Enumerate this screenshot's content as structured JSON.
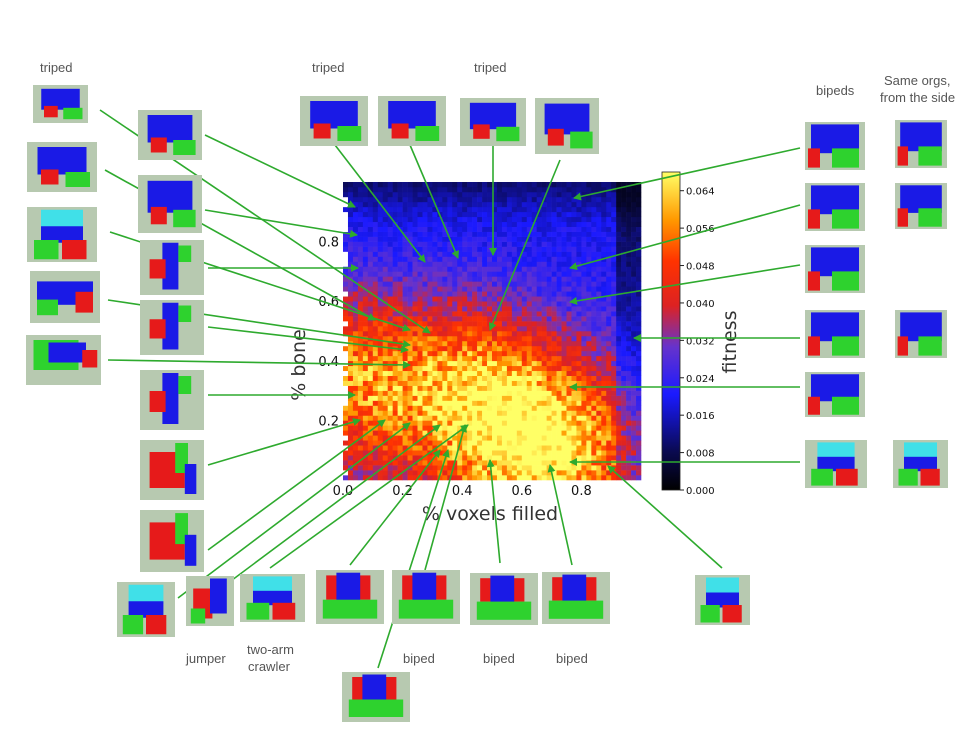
{
  "chart_data": {
    "type": "heatmap",
    "x_axis": {
      "label": "% voxels filled",
      "range": [
        0.0,
        1.0
      ],
      "ticks": [
        "0.0",
        "0.2",
        "0.4",
        "0.6",
        "0.8"
      ]
    },
    "y_axis": {
      "label": "% bone",
      "range": [
        0.0,
        1.0
      ],
      "ticks": [
        "0.2",
        "0.4",
        "0.6",
        "0.8"
      ]
    },
    "colorbar": {
      "label": "fitness",
      "range": [
        0.0,
        0.068
      ],
      "ticks": [
        "0.000",
        "0.008",
        "0.016",
        "0.024",
        "0.032",
        "0.040",
        "0.048",
        "0.056",
        "0.064"
      ]
    },
    "grid": false,
    "fitness_peaks": [
      {
        "x": 0.45,
        "y": 0.3,
        "fitness": 0.05
      },
      {
        "x": 0.7,
        "y": 0.1,
        "fitness": 0.058
      },
      {
        "x": 0.03,
        "y": 0.35,
        "fitness": 0.048
      }
    ]
  },
  "annotations": {
    "labels": [
      {
        "id": "triped-left",
        "text": "triped"
      },
      {
        "id": "triped-top1",
        "text": "triped"
      },
      {
        "id": "triped-top2",
        "text": "triped"
      },
      {
        "id": "bipeds",
        "text": "bipeds"
      },
      {
        "id": "same-orgs-1",
        "text": "Same orgs,"
      },
      {
        "id": "same-orgs-2",
        "text": "from the side"
      },
      {
        "id": "jumper",
        "text": "jumper"
      },
      {
        "id": "two-arm-1",
        "text": "two-arm"
      },
      {
        "id": "two-arm-2",
        "text": "crawler"
      },
      {
        "id": "biped-1",
        "text": "biped"
      },
      {
        "id": "biped-2",
        "text": "biped"
      },
      {
        "id": "biped-3",
        "text": "biped"
      }
    ]
  },
  "colors": {
    "arrow": "#2eaa2e",
    "voxel_blue": "#1a1ae6",
    "voxel_red": "#e61a1a",
    "voxel_green": "#2ed22e",
    "voxel_cyan": "#40e0e8",
    "thumb_bg": "#b7c9b0"
  }
}
